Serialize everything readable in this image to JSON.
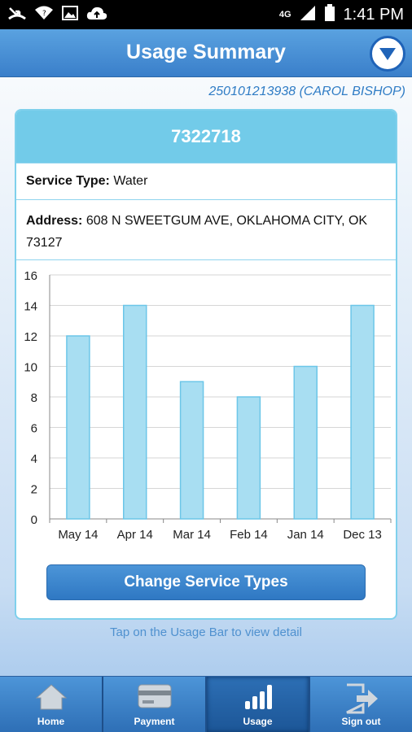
{
  "status_bar": {
    "time": "1:41 PM",
    "network": "4G"
  },
  "header": {
    "title": "Usage Summary"
  },
  "account": {
    "label": "250101213938 (CAROL BISHOP)"
  },
  "card": {
    "title": "7322718",
    "service_label": "Service Type:",
    "service_value": "Water",
    "address_label": "Address:",
    "address_value": "608 N SWEETGUM AVE, OKLAHOMA CITY, OK 73127"
  },
  "chart_data": {
    "type": "bar",
    "categories": [
      "May 14",
      "Apr 14",
      "Mar 14",
      "Feb 14",
      "Jan 14",
      "Dec 13"
    ],
    "values": [
      12,
      14,
      9,
      8,
      10,
      14
    ],
    "ylim": [
      0,
      16
    ],
    "yticks": [
      "0",
      "2",
      "4",
      "6",
      "8",
      "10",
      "12",
      "14",
      "16"
    ],
    "grid": true,
    "bar_color": "#a8def2",
    "bar_edge_color": "#6cc6e8"
  },
  "buttons": {
    "change_service": "Change Service Types"
  },
  "hint": "Tap on the Usage Bar to view detail",
  "nav": {
    "home": "Home",
    "payment": "Payment",
    "usage": "Usage",
    "signout": "Sign out"
  },
  "colors": {
    "accent": "#3a7fca",
    "card_header": "#72cbe9"
  }
}
